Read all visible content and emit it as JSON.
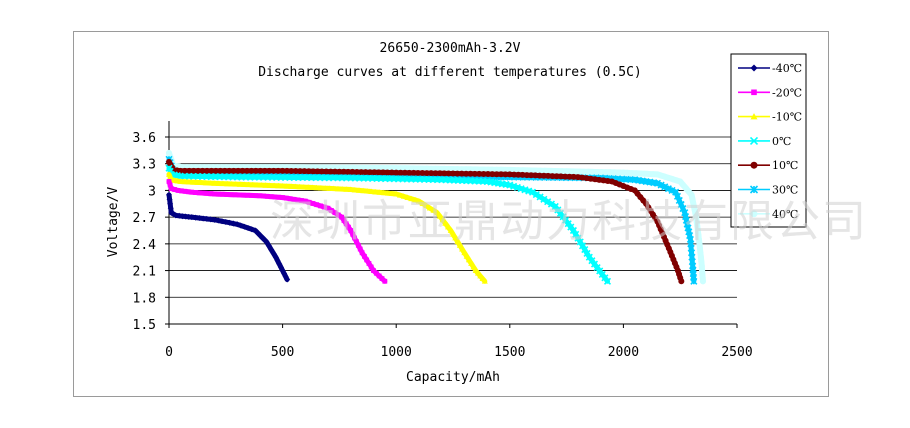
{
  "chart_data": {
    "type": "line",
    "title": "26650-2300mAh-3.2V",
    "subtitle": "Discharge curves at different temperatures (0.5C)",
    "xlabel": "Capacity/mAh",
    "ylabel": "Voltage/V",
    "xlim": [
      0,
      2500
    ],
    "ylim": [
      1.5,
      3.6
    ],
    "x_ticks": [
      "0",
      "500",
      "1000",
      "1500",
      "2000",
      "2500"
    ],
    "y_ticks": [
      "3.6",
      "3.3",
      "3",
      "2.7",
      "2.4",
      "2.1",
      "1.8",
      "1.5"
    ],
    "grid": "horizontal",
    "legend_position": "right",
    "series": [
      {
        "name": "-40℃",
        "color": "#000080",
        "marker": "diamond",
        "x": [
          0,
          10,
          30,
          60,
          100,
          200,
          300,
          380,
          430,
          470,
          500,
          520
        ],
        "y": [
          2.95,
          2.75,
          2.72,
          2.71,
          2.7,
          2.67,
          2.62,
          2.55,
          2.42,
          2.25,
          2.1,
          2.0
        ]
      },
      {
        "name": "-20℃",
        "color": "#ff00ff",
        "marker": "square",
        "x": [
          0,
          10,
          40,
          100,
          200,
          400,
          500,
          600,
          700,
          760,
          800,
          850,
          900,
          950
        ],
        "y": [
          3.1,
          3.02,
          3.0,
          2.98,
          2.96,
          2.94,
          2.92,
          2.88,
          2.8,
          2.7,
          2.55,
          2.3,
          2.1,
          1.98
        ]
      },
      {
        "name": "-10℃",
        "color": "#ffff00",
        "marker": "triangle",
        "x": [
          0,
          10,
          50,
          200,
          500,
          800,
          1000,
          1100,
          1180,
          1240,
          1300,
          1350,
          1390
        ],
        "y": [
          3.18,
          3.12,
          3.1,
          3.08,
          3.05,
          3.01,
          2.96,
          2.88,
          2.75,
          2.55,
          2.3,
          2.1,
          1.98
        ]
      },
      {
        "name": "0℃",
        "color": "#00ffff",
        "marker": "x",
        "x": [
          0,
          10,
          50,
          300,
          800,
          1200,
          1400,
          1500,
          1600,
          1700,
          1780,
          1850,
          1930
        ],
        "y": [
          3.25,
          3.18,
          3.16,
          3.15,
          3.14,
          3.12,
          3.1,
          3.06,
          2.98,
          2.82,
          2.55,
          2.25,
          1.98
        ]
      },
      {
        "name": "10℃",
        "color": "#800000",
        "marker": "circle",
        "x": [
          0,
          20,
          50,
          500,
          1000,
          1500,
          1800,
          1950,
          2050,
          2100,
          2150,
          2200,
          2240,
          2255
        ],
        "y": [
          3.32,
          3.23,
          3.22,
          3.22,
          3.2,
          3.18,
          3.15,
          3.1,
          3.0,
          2.85,
          2.65,
          2.35,
          2.1,
          1.98
        ]
      },
      {
        "name": "30℃",
        "color": "#00ccff",
        "marker": "asterisk",
        "x": [
          0,
          20,
          60,
          500,
          1000,
          1500,
          1900,
          2050,
          2150,
          2230,
          2270,
          2295,
          2305,
          2310
        ],
        "y": [
          3.35,
          3.2,
          3.18,
          3.17,
          3.16,
          3.15,
          3.14,
          3.12,
          3.08,
          2.98,
          2.75,
          2.45,
          2.15,
          1.98
        ]
      },
      {
        "name": "40℃",
        "color": "#ccffff",
        "marker": "circle",
        "x": [
          0,
          20,
          60,
          500,
          1000,
          1500,
          2000,
          2150,
          2250,
          2300,
          2320,
          2335,
          2345,
          2350
        ],
        "y": [
          3.42,
          3.28,
          3.26,
          3.26,
          3.25,
          3.23,
          3.2,
          3.18,
          3.1,
          2.95,
          2.7,
          2.4,
          2.15,
          1.98
        ]
      }
    ]
  },
  "watermark": {
    "text": "深圳市亚鼎动力科技有限公司"
  }
}
